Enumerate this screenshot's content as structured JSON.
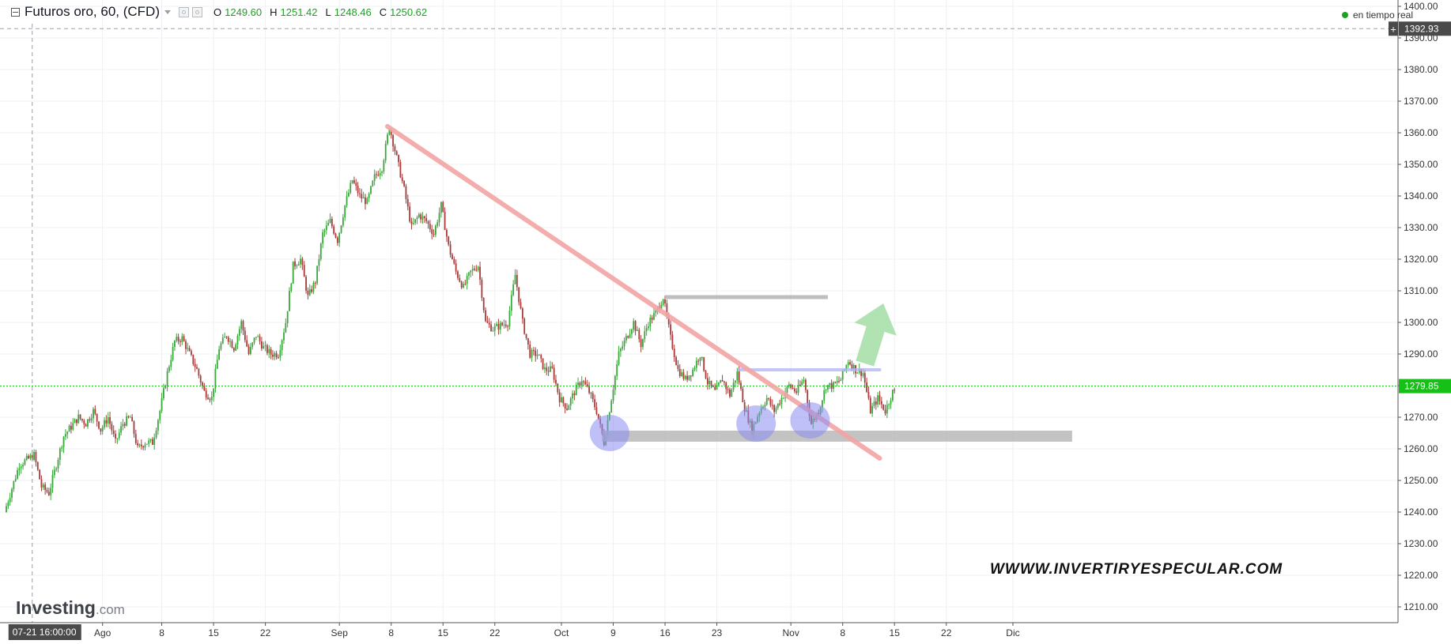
{
  "header": {
    "title": "Futuros oro, 60, (CFD)",
    "ohlc": [
      {
        "k": "O",
        "v": "1249.60"
      },
      {
        "k": "H",
        "v": "1251.42"
      },
      {
        "k": "L",
        "v": "1248.46"
      },
      {
        "k": "C",
        "v": "1250.62"
      }
    ],
    "realtime_label": "en tiempo real"
  },
  "crosshair": {
    "time_label": "07-21 16:00:00",
    "price_label": "1392.93"
  },
  "last_price_label": "1279.85",
  "logo": {
    "main": "Investing",
    "suffix": ".com"
  },
  "watermark": "WWWW.INVERTIRYESPECULAR.COM",
  "colors": {
    "up": "#38a83a",
    "down": "#a83a3a",
    "trendline": "#f3a5a5",
    "support": "#b8b8b8",
    "circle": "#8c8cf2",
    "arrow": "#a9dfa9",
    "last_price": "#16c016"
  },
  "chart_data": {
    "type": "candlestick",
    "ylim": [
      1205,
      1402
    ],
    "y_ticks": [
      1210,
      1220,
      1230,
      1240,
      1250,
      1260,
      1270,
      1280,
      1290,
      1300,
      1310,
      1320,
      1330,
      1340,
      1350,
      1360,
      1370,
      1380,
      1390,
      1400
    ],
    "x_ticks": [
      {
        "label": "Ago",
        "day": 13
      },
      {
        "label": "8",
        "day": 21
      },
      {
        "label": "15",
        "day": 28
      },
      {
        "label": "22",
        "day": 35
      },
      {
        "label": "Sep",
        "day": 45
      },
      {
        "label": "8",
        "day": 52
      },
      {
        "label": "15",
        "day": 59
      },
      {
        "label": "22",
        "day": 66
      },
      {
        "label": "Oct",
        "day": 75
      },
      {
        "label": "9",
        "day": 82
      },
      {
        "label": "16",
        "day": 89
      },
      {
        "label": "23",
        "day": 96
      },
      {
        "label": "Nov",
        "day": 106
      },
      {
        "label": "8",
        "day": 113
      },
      {
        "label": "15",
        "day": 120
      },
      {
        "label": "22",
        "day": 127
      },
      {
        "label": "Dic",
        "day": 136
      }
    ],
    "path_points": [
      [
        0,
        1240
      ],
      [
        2,
        1255
      ],
      [
        4,
        1258
      ],
      [
        5,
        1248
      ],
      [
        6,
        1246
      ],
      [
        8,
        1264
      ],
      [
        10,
        1270
      ],
      [
        11,
        1268
      ],
      [
        12,
        1272
      ],
      [
        13,
        1266
      ],
      [
        14,
        1270
      ],
      [
        15,
        1262
      ],
      [
        16,
        1268
      ],
      [
        17,
        1270
      ],
      [
        18,
        1260
      ],
      [
        19,
        1262
      ],
      [
        20,
        1262
      ],
      [
        21,
        1272
      ],
      [
        22,
        1284
      ],
      [
        23,
        1294
      ],
      [
        24,
        1295
      ],
      [
        26,
        1285
      ],
      [
        27,
        1278
      ],
      [
        28,
        1276
      ],
      [
        29,
        1292
      ],
      [
        30,
        1296
      ],
      [
        31,
        1292
      ],
      [
        32,
        1300
      ],
      [
        33,
        1290
      ],
      [
        34,
        1296
      ],
      [
        35,
        1292
      ],
      [
        36,
        1290
      ],
      [
        37,
        1290
      ],
      [
        38,
        1300
      ],
      [
        39,
        1318
      ],
      [
        40,
        1320
      ],
      [
        41,
        1308
      ],
      [
        42,
        1313
      ],
      [
        43,
        1328
      ],
      [
        44,
        1332
      ],
      [
        45,
        1326
      ],
      [
        46,
        1337
      ],
      [
        47,
        1345
      ],
      [
        48,
        1340
      ],
      [
        49,
        1338
      ],
      [
        50,
        1346
      ],
      [
        51,
        1349
      ],
      [
        52,
        1362
      ],
      [
        53,
        1352
      ],
      [
        54,
        1342
      ],
      [
        55,
        1330
      ],
      [
        56,
        1334
      ],
      [
        57,
        1332
      ],
      [
        58,
        1328
      ],
      [
        59,
        1337
      ],
      [
        60,
        1324
      ],
      [
        61,
        1316
      ],
      [
        62,
        1311
      ],
      [
        63,
        1316
      ],
      [
        64,
        1318
      ],
      [
        65,
        1300
      ],
      [
        66,
        1298
      ],
      [
        67,
        1299
      ],
      [
        68,
        1300
      ],
      [
        69,
        1315
      ],
      [
        70,
        1300
      ],
      [
        71,
        1290
      ],
      [
        72,
        1290
      ],
      [
        73,
        1285
      ],
      [
        74,
        1285
      ],
      [
        75,
        1276
      ],
      [
        76,
        1273
      ],
      [
        77,
        1278
      ],
      [
        78,
        1282
      ],
      [
        79,
        1278
      ],
      [
        80,
        1272
      ],
      [
        81,
        1262
      ],
      [
        82,
        1276
      ],
      [
        83,
        1290
      ],
      [
        84,
        1295
      ],
      [
        85,
        1300
      ],
      [
        86,
        1293
      ],
      [
        87,
        1300
      ],
      [
        88,
        1303
      ],
      [
        89,
        1308
      ],
      [
        90,
        1295
      ],
      [
        91,
        1285
      ],
      [
        92,
        1282
      ],
      [
        93,
        1285
      ],
      [
        94,
        1290
      ],
      [
        95,
        1281
      ],
      [
        96,
        1278
      ],
      [
        97,
        1282
      ],
      [
        98,
        1277
      ],
      [
        99,
        1284
      ],
      [
        100,
        1273
      ],
      [
        101,
        1266
      ],
      [
        102,
        1272
      ],
      [
        103,
        1276
      ],
      [
        104,
        1272
      ],
      [
        105,
        1276
      ],
      [
        106,
        1280
      ],
      [
        107,
        1278
      ],
      [
        108,
        1282
      ],
      [
        109,
        1268
      ],
      [
        110,
        1272
      ],
      [
        111,
        1280
      ],
      [
        112,
        1280
      ],
      [
        113,
        1282
      ],
      [
        114,
        1288
      ],
      [
        115,
        1285
      ],
      [
        116,
        1284
      ],
      [
        117,
        1272
      ],
      [
        118,
        1276
      ],
      [
        119,
        1272
      ],
      [
        120,
        1278
      ]
    ],
    "last_price": 1279.85,
    "crosshair_price": 1392.93,
    "crosshair_day": 3.5,
    "annotations": {
      "trendline": [
        [
          51.5,
          1362
        ],
        [
          118,
          1257
        ]
      ],
      "resistance_line": [
        [
          89,
          1308
        ],
        [
          111,
          1308
        ]
      ],
      "small_resistance": [
        [
          99,
          1285
        ],
        [
          118,
          1285
        ]
      ],
      "support_band": [
        [
          80.5,
          1264
        ],
        [
          144,
          1264
        ]
      ],
      "circles": [
        [
          81.5,
          1265
        ],
        [
          101.3,
          1268
        ],
        [
          108.6,
          1269
        ]
      ],
      "arrow_from": [
        116,
        1287
      ],
      "arrow_to": [
        118.5,
        1306
      ]
    }
  }
}
